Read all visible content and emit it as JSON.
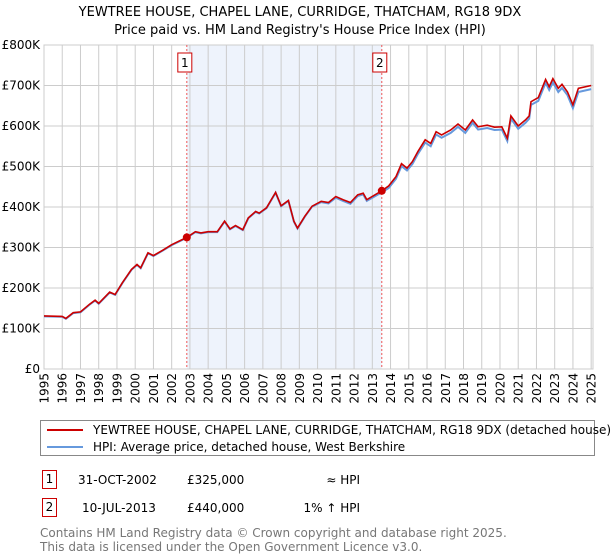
{
  "title": "YEWTREE HOUSE, CHAPEL LANE, CURRIDGE, THATCHAM, RG18 9DX",
  "subtitle": "Price paid vs. HM Land Registry's House Price Index (HPI)",
  "colors": {
    "price": "#cc0000",
    "hpi": "#6699dd",
    "shade": "#eef3fc",
    "grid": "#cccccc"
  },
  "chart_data": {
    "type": "line",
    "title": "YEWTREE HOUSE, CHAPEL LANE, CURRIDGE, THATCHAM, RG18 9DX",
    "xlim": [
      1995,
      2025.1
    ],
    "ylim": [
      0,
      800000
    ],
    "grid": true,
    "legend_placement": "below",
    "y_ticks": [
      {
        "v": 0,
        "label": "£0"
      },
      {
        "v": 100000,
        "label": "£100K"
      },
      {
        "v": 200000,
        "label": "£200K"
      },
      {
        "v": 300000,
        "label": "£300K"
      },
      {
        "v": 400000,
        "label": "£400K"
      },
      {
        "v": 500000,
        "label": "£500K"
      },
      {
        "v": 600000,
        "label": "£600K"
      },
      {
        "v": 700000,
        "label": "£700K"
      },
      {
        "v": 800000,
        "label": "£800K"
      }
    ],
    "x_ticks": [
      "1995",
      "1996",
      "1997",
      "1998",
      "1999",
      "2000",
      "2001",
      "2002",
      "2003",
      "2004",
      "2005",
      "2006",
      "2007",
      "2008",
      "2009",
      "2010",
      "2011",
      "2012",
      "2013",
      "2014",
      "2015",
      "2016",
      "2017",
      "2018",
      "2019",
      "2020",
      "2021",
      "2022",
      "2023",
      "2024",
      "2025"
    ],
    "shaded_range": [
      2002.83,
      2013.52
    ],
    "series": [
      {
        "name": "YEWTREE HOUSE, CHAPEL LANE, CURRIDGE, THATCHAM, RG18 9DX (detached house)",
        "color": "#cc0000",
        "points": [
          [
            1995,
            131000
          ],
          [
            1996,
            130000
          ],
          [
            1996.2,
            125000
          ],
          [
            1996.6,
            139000
          ],
          [
            1997,
            141000
          ],
          [
            1997.5,
            160000
          ],
          [
            1997.8,
            170000
          ],
          [
            1998,
            162000
          ],
          [
            1998.6,
            190000
          ],
          [
            1998.9,
            184000
          ],
          [
            1999.3,
            213000
          ],
          [
            1999.8,
            246000
          ],
          [
            2000.1,
            258000
          ],
          [
            2000.3,
            250000
          ],
          [
            2000.7,
            287000
          ],
          [
            2001,
            280000
          ],
          [
            2001.5,
            293000
          ],
          [
            2002,
            307000
          ],
          [
            2002.83,
            325000
          ],
          [
            2003.3,
            339000
          ],
          [
            2003.6,
            336000
          ],
          [
            2004,
            339000
          ],
          [
            2004.5,
            339000
          ],
          [
            2004.9,
            365000
          ],
          [
            2005.2,
            346000
          ],
          [
            2005.5,
            354000
          ],
          [
            2005.9,
            344000
          ],
          [
            2006.2,
            373000
          ],
          [
            2006.6,
            389000
          ],
          [
            2006.8,
            385000
          ],
          [
            2007.2,
            398000
          ],
          [
            2007.7,
            436000
          ],
          [
            2008,
            403000
          ],
          [
            2008.4,
            416000
          ],
          [
            2008.7,
            365000
          ],
          [
            2008.9,
            348000
          ],
          [
            2009.3,
            377000
          ],
          [
            2009.7,
            402000
          ],
          [
            2010.2,
            414000
          ],
          [
            2010.6,
            411000
          ],
          [
            2011,
            426000
          ],
          [
            2011.4,
            418000
          ],
          [
            2011.8,
            411000
          ],
          [
            2012.2,
            430000
          ],
          [
            2012.5,
            434000
          ],
          [
            2012.7,
            418000
          ],
          [
            2013.52,
            440000
          ],
          [
            2013.9,
            452000
          ],
          [
            2014.3,
            475000
          ],
          [
            2014.6,
            507000
          ],
          [
            2014.9,
            496000
          ],
          [
            2015.2,
            512000
          ],
          [
            2015.5,
            537000
          ],
          [
            2015.9,
            566000
          ],
          [
            2016.2,
            557000
          ],
          [
            2016.5,
            586000
          ],
          [
            2016.8,
            578000
          ],
          [
            2017.3,
            590000
          ],
          [
            2017.7,
            605000
          ],
          [
            2018.1,
            590000
          ],
          [
            2018.5,
            615000
          ],
          [
            2018.8,
            598000
          ],
          [
            2019.3,
            602000
          ],
          [
            2019.7,
            597000
          ],
          [
            2020.1,
            598000
          ],
          [
            2020.4,
            570000
          ],
          [
            2020.6,
            625000
          ],
          [
            2021,
            600000
          ],
          [
            2021.4,
            615000
          ],
          [
            2021.6,
            625000
          ],
          [
            2021.7,
            660000
          ],
          [
            2022.1,
            670000
          ],
          [
            2022.5,
            715000
          ],
          [
            2022.7,
            697000
          ],
          [
            2022.9,
            717000
          ],
          [
            2023.2,
            693000
          ],
          [
            2023.4,
            703000
          ],
          [
            2023.7,
            684000
          ],
          [
            2024,
            652000
          ],
          [
            2024.3,
            693000
          ],
          [
            2025,
            700000
          ]
        ]
      },
      {
        "name": "HPI: Average price, detached house, West Berkshire",
        "color": "#6699dd",
        "points": [
          [
            1995,
            130000
          ],
          [
            1996,
            129000
          ],
          [
            1996.2,
            124000
          ],
          [
            1996.6,
            138000
          ],
          [
            1997,
            140000
          ],
          [
            1997.5,
            159000
          ],
          [
            1997.8,
            169000
          ],
          [
            1998,
            161000
          ],
          [
            1998.6,
            189000
          ],
          [
            1998.9,
            183000
          ],
          [
            1999.3,
            212000
          ],
          [
            1999.8,
            245000
          ],
          [
            2000.1,
            257000
          ],
          [
            2000.3,
            249000
          ],
          [
            2000.7,
            286000
          ],
          [
            2001,
            279000
          ],
          [
            2001.5,
            292000
          ],
          [
            2002,
            306000
          ],
          [
            2002.83,
            324000
          ],
          [
            2003.3,
            338000
          ],
          [
            2003.6,
            335000
          ],
          [
            2004,
            338000
          ],
          [
            2004.5,
            338000
          ],
          [
            2004.9,
            364000
          ],
          [
            2005.2,
            345000
          ],
          [
            2005.5,
            353000
          ],
          [
            2005.9,
            343000
          ],
          [
            2006.2,
            372000
          ],
          [
            2006.6,
            388000
          ],
          [
            2006.8,
            384000
          ],
          [
            2007.2,
            397000
          ],
          [
            2007.7,
            435000
          ],
          [
            2008,
            402000
          ],
          [
            2008.4,
            415000
          ],
          [
            2008.7,
            364000
          ],
          [
            2008.9,
            347000
          ],
          [
            2009.3,
            376000
          ],
          [
            2009.7,
            401000
          ],
          [
            2010.2,
            412000
          ],
          [
            2010.6,
            409000
          ],
          [
            2011,
            423000
          ],
          [
            2011.4,
            415000
          ],
          [
            2011.8,
            408000
          ],
          [
            2012.2,
            427000
          ],
          [
            2012.5,
            431000
          ],
          [
            2012.7,
            415000
          ],
          [
            2013.52,
            436000
          ],
          [
            2013.9,
            447000
          ],
          [
            2014.3,
            470000
          ],
          [
            2014.6,
            501000
          ],
          [
            2014.9,
            490000
          ],
          [
            2015.2,
            506000
          ],
          [
            2015.5,
            531000
          ],
          [
            2015.9,
            559000
          ],
          [
            2016.2,
            550000
          ],
          [
            2016.5,
            579000
          ],
          [
            2016.8,
            571000
          ],
          [
            2017.3,
            583000
          ],
          [
            2017.7,
            598000
          ],
          [
            2018.1,
            583000
          ],
          [
            2018.5,
            608000
          ],
          [
            2018.8,
            591000
          ],
          [
            2019.3,
            595000
          ],
          [
            2019.7,
            590000
          ],
          [
            2020.1,
            591000
          ],
          [
            2020.4,
            563000
          ],
          [
            2020.6,
            618000
          ],
          [
            2021,
            593000
          ],
          [
            2021.4,
            608000
          ],
          [
            2021.6,
            618000
          ],
          [
            2021.7,
            652000
          ],
          [
            2022.1,
            662000
          ],
          [
            2022.5,
            707000
          ],
          [
            2022.7,
            689000
          ],
          [
            2022.9,
            708000
          ],
          [
            2023.2,
            684000
          ],
          [
            2023.4,
            694000
          ],
          [
            2023.7,
            676000
          ],
          [
            2024,
            644000
          ],
          [
            2024.3,
            684000
          ],
          [
            2025,
            691000
          ]
        ]
      }
    ],
    "sales": [
      {
        "label": "1",
        "x": 2002.83,
        "y": 325000
      },
      {
        "label": "2",
        "x": 2013.52,
        "y": 440000
      }
    ]
  },
  "legend": {
    "price_label": "YEWTREE HOUSE, CHAPEL LANE, CURRIDGE, THATCHAM, RG18 9DX (detached house)",
    "hpi_label": "HPI: Average price, detached house, West Berkshire"
  },
  "transactions": [
    {
      "num": "1",
      "date": "31-OCT-2002",
      "price": "£325,000",
      "hpi": "≈ HPI"
    },
    {
      "num": "2",
      "date": "10-JUL-2013",
      "price": "£440,000",
      "hpi": "1% ↑ HPI"
    }
  ],
  "footer": {
    "line1": "Contains HM Land Registry data © Crown copyright and database right 2025.",
    "line2": "This data is licensed under the Open Government Licence v3.0."
  }
}
